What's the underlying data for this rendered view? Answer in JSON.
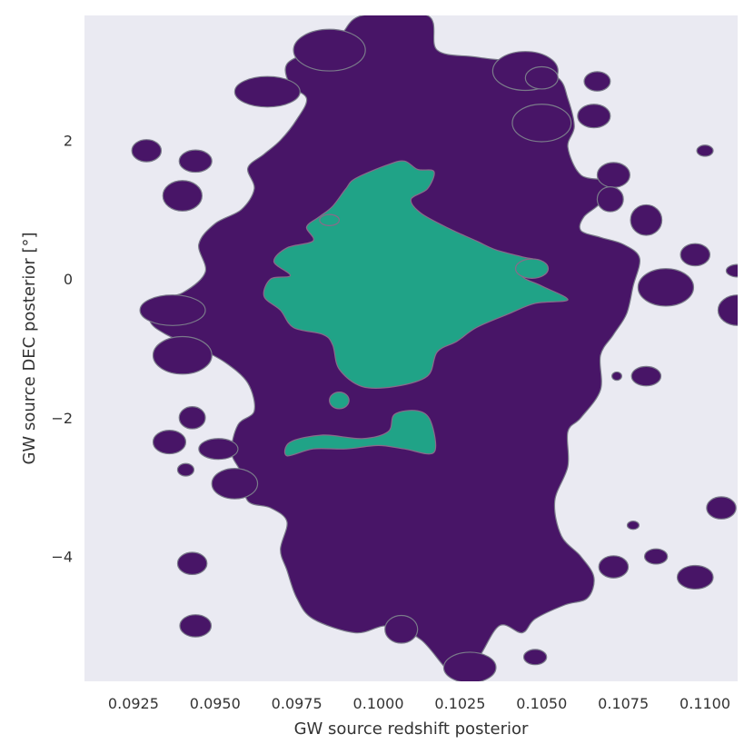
{
  "chart_data": {
    "type": "contour",
    "xlabel": "GW source redshift posterior",
    "ylabel": "GW source DEC posterior [°]",
    "xlim": [
      0.091,
      0.111
    ],
    "ylim": [
      -5.8,
      3.8
    ],
    "x_ticks": [
      0.0925,
      0.095,
      0.0975,
      0.1,
      0.1025,
      0.105,
      0.1075,
      0.11
    ],
    "x_tick_labels": [
      "0.0925",
      "0.0950",
      "0.0975",
      "0.1000",
      "0.1025",
      "0.1050",
      "0.1075",
      "0.1100"
    ],
    "y_ticks": [
      2,
      0,
      -2,
      -4
    ],
    "y_tick_labels": [
      "2",
      "0",
      "−2",
      "−4"
    ],
    "grid": false,
    "levels": [
      {
        "name": "outer",
        "color": "#481567"
      },
      {
        "name": "inner",
        "color": "#20a387"
      }
    ],
    "outer_region": {
      "main": [
        [
          0.0995,
          3.8
        ],
        [
          0.1015,
          3.8
        ],
        [
          0.1018,
          3.3
        ],
        [
          0.103,
          3.2
        ],
        [
          0.1045,
          3.1
        ],
        [
          0.1055,
          2.9
        ],
        [
          0.1058,
          2.6
        ],
        [
          0.106,
          2.2
        ],
        [
          0.1058,
          1.9
        ],
        [
          0.1062,
          1.5
        ],
        [
          0.107,
          1.4
        ],
        [
          0.1068,
          1.1
        ],
        [
          0.1063,
          0.9
        ],
        [
          0.1062,
          0.7
        ],
        [
          0.1068,
          0.6
        ],
        [
          0.1075,
          0.5
        ],
        [
          0.108,
          0.3
        ],
        [
          0.1078,
          -0.1
        ],
        [
          0.1076,
          -0.5
        ],
        [
          0.1072,
          -0.8
        ],
        [
          0.1068,
          -1.1
        ],
        [
          0.1068,
          -1.6
        ],
        [
          0.1062,
          -2.0
        ],
        [
          0.1058,
          -2.2
        ],
        [
          0.1058,
          -2.7
        ],
        [
          0.1054,
          -3.2
        ],
        [
          0.1056,
          -3.7
        ],
        [
          0.1062,
          -4.0
        ],
        [
          0.1066,
          -4.3
        ],
        [
          0.1064,
          -4.6
        ],
        [
          0.1057,
          -4.7
        ],
        [
          0.1048,
          -4.9
        ],
        [
          0.1044,
          -5.1
        ],
        [
          0.1037,
          -5.0
        ],
        [
          0.103,
          -5.5
        ],
        [
          0.1023,
          -5.7
        ],
        [
          0.1013,
          -5.2
        ],
        [
          0.1003,
          -5.0
        ],
        [
          0.0993,
          -5.1
        ],
        [
          0.098,
          -4.9
        ],
        [
          0.0975,
          -4.6
        ],
        [
          0.0972,
          -4.2
        ],
        [
          0.097,
          -3.9
        ],
        [
          0.0972,
          -3.5
        ],
        [
          0.0967,
          -3.3
        ],
        [
          0.096,
          -3.2
        ],
        [
          0.0958,
          -2.8
        ],
        [
          0.0955,
          -2.5
        ],
        [
          0.0957,
          -2.1
        ],
        [
          0.0962,
          -1.9
        ],
        [
          0.096,
          -1.5
        ],
        [
          0.0953,
          -1.2
        ],
        [
          0.0945,
          -1.0
        ],
        [
          0.0935,
          -0.8
        ],
        [
          0.093,
          -0.6
        ],
        [
          0.0932,
          -0.3
        ],
        [
          0.094,
          -0.2
        ],
        [
          0.0947,
          0.1
        ],
        [
          0.0945,
          0.5
        ],
        [
          0.095,
          0.8
        ],
        [
          0.0958,
          1.0
        ],
        [
          0.0962,
          1.3
        ],
        [
          0.096,
          1.6
        ],
        [
          0.0965,
          1.8
        ],
        [
          0.097,
          2.0
        ],
        [
          0.0975,
          2.3
        ],
        [
          0.0978,
          2.6
        ],
        [
          0.0973,
          2.8
        ],
        [
          0.0972,
          3.1
        ],
        [
          0.098,
          3.3
        ],
        [
          0.0988,
          3.5
        ]
      ],
      "islands": [
        {
          "x": 0.0929,
          "y": 1.85,
          "rx": 0.00045,
          "ry": 0.16
        },
        {
          "x": 0.0944,
          "y": 1.7,
          "rx": 0.0005,
          "ry": 0.16
        },
        {
          "x": 0.094,
          "y": 1.2,
          "rx": 0.0006,
          "ry": 0.22
        },
        {
          "x": 0.0966,
          "y": 2.7,
          "rx": 0.001,
          "ry": 0.22
        },
        {
          "x": 0.0985,
          "y": 3.3,
          "rx": 0.0011,
          "ry": 0.3
        },
        {
          "x": 0.1045,
          "y": 3.0,
          "rx": 0.001,
          "ry": 0.28
        },
        {
          "x": 0.105,
          "y": 2.9,
          "rx": 0.0005,
          "ry": 0.16
        },
        {
          "x": 0.1067,
          "y": 2.85,
          "rx": 0.0004,
          "ry": 0.14
        },
        {
          "x": 0.1066,
          "y": 2.35,
          "rx": 0.0005,
          "ry": 0.17
        },
        {
          "x": 0.105,
          "y": 2.25,
          "rx": 0.0009,
          "ry": 0.27
        },
        {
          "x": 0.1072,
          "y": 1.5,
          "rx": 0.0005,
          "ry": 0.18
        },
        {
          "x": 0.1071,
          "y": 1.15,
          "rx": 0.0004,
          "ry": 0.18
        },
        {
          "x": 0.1082,
          "y": 0.85,
          "rx": 0.00048,
          "ry": 0.22
        },
        {
          "x": 0.11,
          "y": 1.85,
          "rx": 0.00025,
          "ry": 0.08
        },
        {
          "x": 0.1097,
          "y": 0.35,
          "rx": 0.00045,
          "ry": 0.16
        },
        {
          "x": 0.1088,
          "y": -0.12,
          "rx": 0.00085,
          "ry": 0.27
        },
        {
          "x": 0.111,
          "y": 0.12,
          "rx": 0.00035,
          "ry": 0.09
        },
        {
          "x": 0.111,
          "y": -0.45,
          "rx": 0.0006,
          "ry": 0.22
        },
        {
          "x": 0.1082,
          "y": -1.4,
          "rx": 0.00045,
          "ry": 0.14
        },
        {
          "x": 0.1073,
          "y": -1.4,
          "rx": 0.00015,
          "ry": 0.06
        },
        {
          "x": 0.0937,
          "y": -0.45,
          "rx": 0.001,
          "ry": 0.22
        },
        {
          "x": 0.094,
          "y": -1.1,
          "rx": 0.0009,
          "ry": 0.27
        },
        {
          "x": 0.0943,
          "y": -2.0,
          "rx": 0.0004,
          "ry": 0.16
        },
        {
          "x": 0.0936,
          "y": -2.35,
          "rx": 0.0005,
          "ry": 0.17
        },
        {
          "x": 0.0941,
          "y": -2.75,
          "rx": 0.00025,
          "ry": 0.09
        },
        {
          "x": 0.0956,
          "y": -2.95,
          "rx": 0.0007,
          "ry": 0.22
        },
        {
          "x": 0.0951,
          "y": -2.45,
          "rx": 0.0006,
          "ry": 0.15
        },
        {
          "x": 0.0943,
          "y": -4.1,
          "rx": 0.00045,
          "ry": 0.16
        },
        {
          "x": 0.0944,
          "y": -5.0,
          "rx": 0.00048,
          "ry": 0.16
        },
        {
          "x": 0.1007,
          "y": -5.05,
          "rx": 0.0005,
          "ry": 0.2
        },
        {
          "x": 0.1028,
          "y": -5.6,
          "rx": 0.0008,
          "ry": 0.22
        },
        {
          "x": 0.1048,
          "y": -5.45,
          "rx": 0.00035,
          "ry": 0.11
        },
        {
          "x": 0.1072,
          "y": -4.15,
          "rx": 0.00045,
          "ry": 0.16
        },
        {
          "x": 0.1085,
          "y": -4.0,
          "rx": 0.00035,
          "ry": 0.11
        },
        {
          "x": 0.1097,
          "y": -4.3,
          "rx": 0.00055,
          "ry": 0.17
        },
        {
          "x": 0.1105,
          "y": -3.3,
          "rx": 0.00045,
          "ry": 0.16
        },
        {
          "x": 0.1078,
          "y": -3.55,
          "rx": 0.00018,
          "ry": 0.06
        }
      ]
    },
    "inner_region": {
      "main": [
        [
          0.0993,
          1.45
        ],
        [
          0.1003,
          1.65
        ],
        [
          0.1008,
          1.7
        ],
        [
          0.1012,
          1.58
        ],
        [
          0.1017,
          1.55
        ],
        [
          0.1015,
          1.3
        ],
        [
          0.101,
          1.15
        ],
        [
          0.1013,
          0.95
        ],
        [
          0.1022,
          0.72
        ],
        [
          0.103,
          0.55
        ],
        [
          0.1036,
          0.42
        ],
        [
          0.1044,
          0.32
        ],
        [
          0.1049,
          0.25
        ],
        [
          0.1044,
          0.05
        ],
        [
          0.105,
          -0.1
        ],
        [
          0.1058,
          -0.3
        ],
        [
          0.1048,
          -0.35
        ],
        [
          0.104,
          -0.5
        ],
        [
          0.103,
          -0.7
        ],
        [
          0.1024,
          -0.9
        ],
        [
          0.1018,
          -1.05
        ],
        [
          0.1015,
          -1.4
        ],
        [
          0.1005,
          -1.55
        ],
        [
          0.0995,
          -1.55
        ],
        [
          0.0988,
          -1.3
        ],
        [
          0.0986,
          -0.95
        ],
        [
          0.0983,
          -0.8
        ],
        [
          0.0974,
          -0.7
        ],
        [
          0.097,
          -0.45
        ],
        [
          0.0965,
          -0.25
        ],
        [
          0.0967,
          0.0
        ],
        [
          0.0973,
          0.05
        ],
        [
          0.0968,
          0.25
        ],
        [
          0.0972,
          0.45
        ],
        [
          0.098,
          0.55
        ],
        [
          0.0978,
          0.75
        ],
        [
          0.0982,
          0.9
        ],
        [
          0.0986,
          1.05
        ],
        [
          0.099,
          1.3
        ]
      ],
      "islands": [
        {
          "x": 0.0985,
          "y": 0.85,
          "rx": 0.0003,
          "ry": 0.08
        },
        {
          "x": 0.0988,
          "y": -1.75,
          "rx": 0.0003,
          "ry": 0.12
        },
        {
          "x": 0.1047,
          "y": 0.15,
          "rx": 0.0005,
          "ry": 0.14
        }
      ],
      "secondary": [
        [
          0.0973,
          -2.35
        ],
        [
          0.0983,
          -2.25
        ],
        [
          0.0995,
          -2.3
        ],
        [
          0.1003,
          -2.2
        ],
        [
          0.1005,
          -1.95
        ],
        [
          0.1012,
          -1.9
        ],
        [
          0.1016,
          -2.05
        ],
        [
          0.1017,
          -2.5
        ],
        [
          0.1008,
          -2.45
        ],
        [
          0.1,
          -2.4
        ],
        [
          0.099,
          -2.45
        ],
        [
          0.098,
          -2.45
        ],
        [
          0.0972,
          -2.55
        ]
      ]
    }
  }
}
